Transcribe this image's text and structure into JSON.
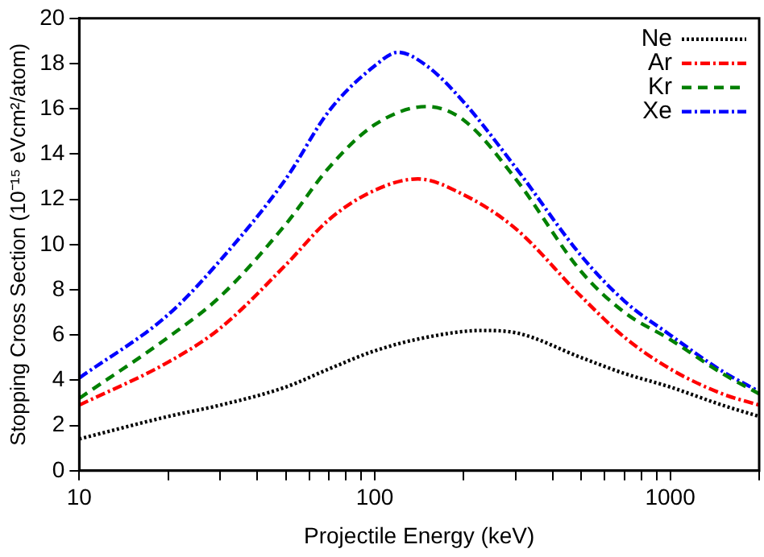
{
  "chart_data": {
    "type": "line",
    "xlabel": "Projectile Energy (keV)",
    "ylabel": "Stopping Cross Section (10⁻¹⁵ eVcm²/atom)",
    "log": "x",
    "grid": false,
    "legend": "top right",
    "marker": "none",
    "xlim": [
      10,
      2000
    ],
    "ylim": [
      0,
      20
    ],
    "xticks": [
      10,
      {
        "value": 20,
        "label": null
      },
      {
        "value": 30,
        "label": null
      },
      {
        "value": 40,
        "label": null
      },
      {
        "value": 50,
        "label": null
      },
      {
        "value": 60,
        "label": null
      },
      {
        "value": 70,
        "label": null
      },
      {
        "value": 80,
        "label": null
      },
      {
        "value": 90,
        "label": null
      },
      100,
      {
        "value": 200,
        "label": null
      },
      {
        "value": 300,
        "label": null
      },
      {
        "value": 400,
        "label": null
      },
      {
        "value": 500,
        "label": null
      },
      {
        "value": 600,
        "label": null
      },
      {
        "value": 700,
        "label": null
      },
      {
        "value": 800,
        "label": null
      },
      {
        "value": 900,
        "label": null
      },
      1000,
      {
        "value": 2000,
        "label": null
      }
    ],
    "yticks": [
      0,
      2,
      4,
      6,
      8,
      10,
      12,
      14,
      16,
      18,
      20
    ],
    "series": [
      {
        "name": "Ne",
        "color": "#000000",
        "line_style": "dotted",
        "x": [
          10,
          20,
          30,
          50,
          70,
          100,
          150,
          230,
          300,
          500,
          700,
          1000,
          1500,
          2000
        ],
        "values": [
          1.4,
          2.4,
          2.9,
          3.7,
          4.5,
          5.3,
          5.9,
          6.2,
          6.1,
          5.0,
          4.3,
          3.7,
          2.9,
          2.4
        ]
      },
      {
        "name": "Ar",
        "color": "#ff0000",
        "line_style": "dashdot",
        "x": [
          10,
          20,
          30,
          50,
          70,
          100,
          140,
          200,
          300,
          500,
          700,
          1000,
          1500,
          2000
        ],
        "values": [
          2.9,
          4.8,
          6.3,
          9.1,
          11.1,
          12.4,
          12.9,
          12.2,
          10.7,
          7.7,
          5.9,
          4.5,
          3.4,
          2.9
        ]
      },
      {
        "name": "Kr",
        "color": "#008000",
        "line_style": "dashed",
        "x": [
          10,
          20,
          30,
          50,
          70,
          100,
          150,
          200,
          300,
          500,
          700,
          1000,
          1500,
          2000
        ],
        "values": [
          3.2,
          5.9,
          7.7,
          10.9,
          13.4,
          15.3,
          16.1,
          15.5,
          12.9,
          8.8,
          7.0,
          5.8,
          4.3,
          3.4
        ]
      },
      {
        "name": "Xe",
        "color": "#0000ff",
        "line_style": "dashdot",
        "x": [
          10,
          20,
          30,
          50,
          70,
          100,
          120,
          150,
          200,
          300,
          500,
          700,
          1000,
          1500,
          2000
        ],
        "values": [
          4.1,
          6.9,
          9.3,
          12.9,
          15.9,
          17.9,
          18.5,
          17.9,
          16.3,
          13.4,
          9.5,
          7.5,
          6.0,
          4.4,
          3.5
        ]
      }
    ]
  }
}
